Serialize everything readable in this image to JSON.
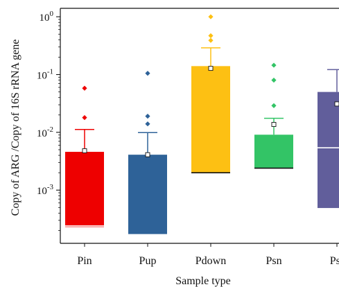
{
  "chart_data": {
    "type": "boxplot",
    "title": "",
    "xlabel": "Sample type",
    "ylabel": "Copy of ARG /Copy of 16S rRNA gene",
    "yscale": "log",
    "ylim": [
      0.00012,
      1.4
    ],
    "y_ticks": [
      {
        "value": 0.001,
        "base": "10",
        "exp": "-3"
      },
      {
        "value": 0.01,
        "base": "10",
        "exp": "-2"
      },
      {
        "value": 0.1,
        "base": "10",
        "exp": "-1"
      },
      {
        "value": 1,
        "base": "10",
        "exp": "0"
      }
    ],
    "grid": false,
    "legend": "none",
    "categories": [
      "Pin",
      "Pup",
      "Pdown",
      "Psn",
      "Psf"
    ],
    "series": [
      {
        "category": "Pin",
        "color": "#ee0000",
        "q1": 0.00023,
        "median": 0.00024,
        "q3": 0.0046,
        "whisker_low": null,
        "whisker_high": 0.0112,
        "mean": 0.0048,
        "outliers": [
          0.018,
          0.058
        ]
      },
      {
        "category": "Pup",
        "color": "#2e6298",
        "q1": 0.00017,
        "median": 0.00017,
        "q3": 0.0041,
        "whisker_low": null,
        "whisker_high": 0.0099,
        "mean": 0.0041,
        "outliers": [
          0.014,
          0.019,
          0.105
        ]
      },
      {
        "category": "Pdown",
        "color": "#fdc013",
        "q1": 0.002,
        "median": 0.002,
        "q3": 0.14,
        "whisker_low": null,
        "whisker_high": 0.29,
        "mean": 0.128,
        "outliers": [
          0.39,
          0.47,
          1.0
        ]
      },
      {
        "category": "Psn",
        "color": "#33c466",
        "q1": 0.0024,
        "median": 0.0024,
        "q3": 0.0091,
        "whisker_low": null,
        "whisker_high": 0.0175,
        "mean": 0.0137,
        "outliers": [
          0.029,
          0.08,
          0.145
        ]
      },
      {
        "category": "Psf",
        "color": "#615e9b",
        "q1": 0.00049,
        "median": 0.0054,
        "q3": 0.05,
        "whisker_low": null,
        "whisker_high": 0.122,
        "mean": 0.031,
        "outliers": []
      }
    ]
  }
}
